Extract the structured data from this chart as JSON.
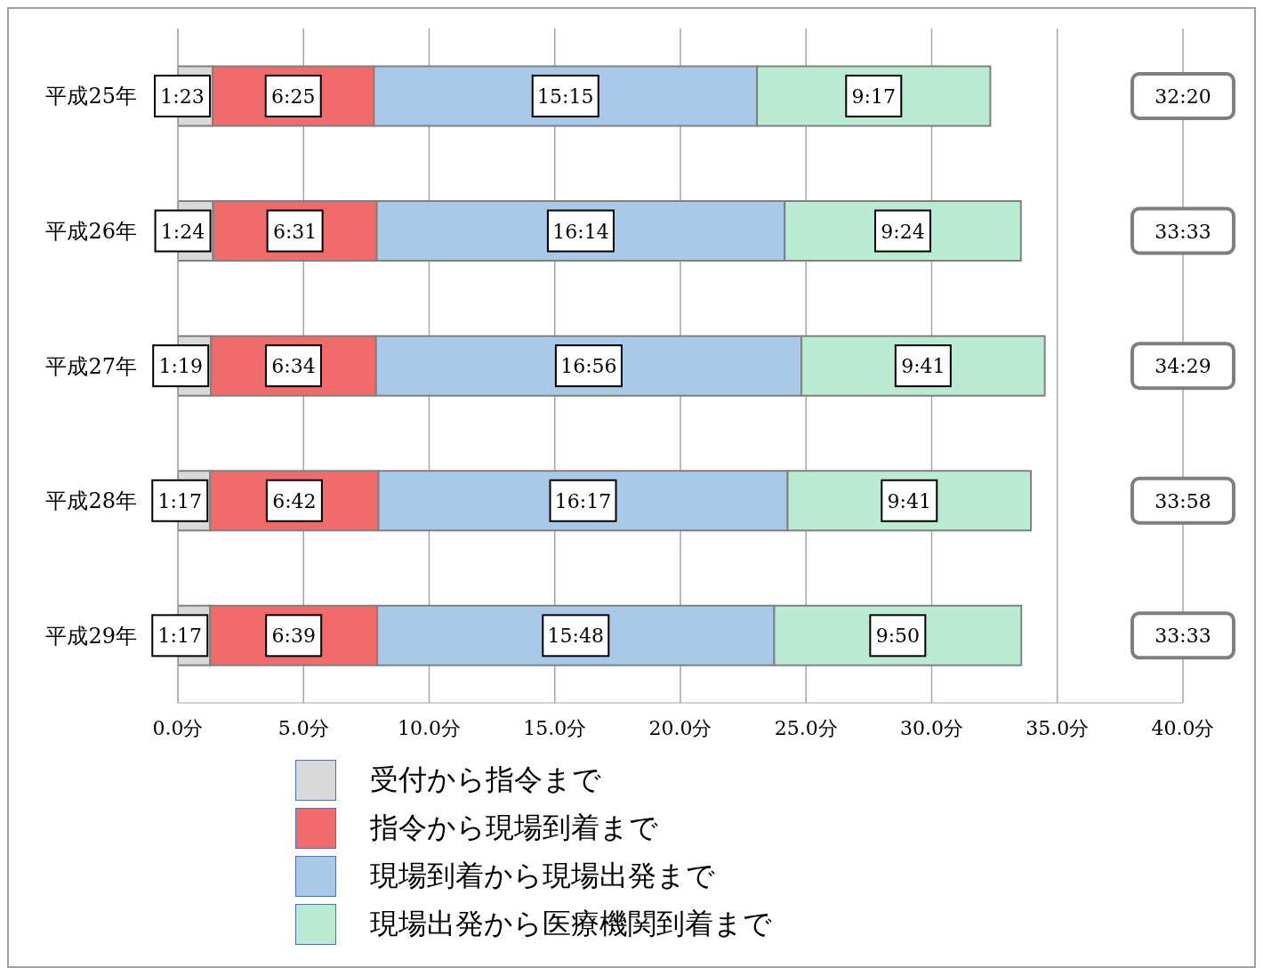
{
  "chart_data": {
    "type": "bar",
    "orientation": "horizontal",
    "stacked": true,
    "categories": [
      "平成25年",
      "平成26年",
      "平成27年",
      "平成28年",
      "平成29年"
    ],
    "series": [
      {
        "name": "受付から指令まで",
        "color": "#d9d9d9",
        "values": [
          1.383,
          1.4,
          1.317,
          1.283,
          1.283
        ],
        "value_labels": [
          "1:23",
          "1:24",
          "1:19",
          "1:17",
          "1:17"
        ]
      },
      {
        "name": "指令から現場到着まで",
        "color": "#f26b6b",
        "values": [
          6.417,
          6.517,
          6.567,
          6.7,
          6.65
        ],
        "value_labels": [
          "6:25",
          "6:31",
          "6:34",
          "6:42",
          "6:39"
        ]
      },
      {
        "name": "現場到着から現場出発まで",
        "color": "#a9c9e8",
        "values": [
          15.25,
          16.233,
          16.933,
          16.283,
          15.8
        ],
        "value_labels": [
          "15:15",
          "16:14",
          "16:56",
          "16:17",
          "15:48"
        ]
      },
      {
        "name": "現場出発から医療機関到着まで",
        "color": "#b9ecd2",
        "values": [
          9.283,
          9.4,
          9.683,
          9.683,
          9.833
        ],
        "value_labels": [
          "9:17",
          "9:24",
          "9:41",
          "9:41",
          "9:50"
        ]
      }
    ],
    "annotations": [
      "32:20",
      "33:33",
      "34:29",
      "33:58",
      "33:33"
    ],
    "xlim": [
      0,
      40
    ],
    "xticks": [
      {
        "value": 0,
        "label": "0.0分"
      },
      {
        "value": 5,
        "label": "5.0分"
      },
      {
        "value": 10,
        "label": "10.0分"
      },
      {
        "value": 15,
        "label": "15.0分"
      },
      {
        "value": 20,
        "label": "20.0分"
      },
      {
        "value": 25,
        "label": "25.0分"
      },
      {
        "value": 30,
        "label": "30.0分"
      },
      {
        "value": 35,
        "label": "35.0分"
      },
      {
        "value": 40,
        "label": "40.0分"
      }
    ],
    "grid": "x",
    "legend": "bottom"
  }
}
